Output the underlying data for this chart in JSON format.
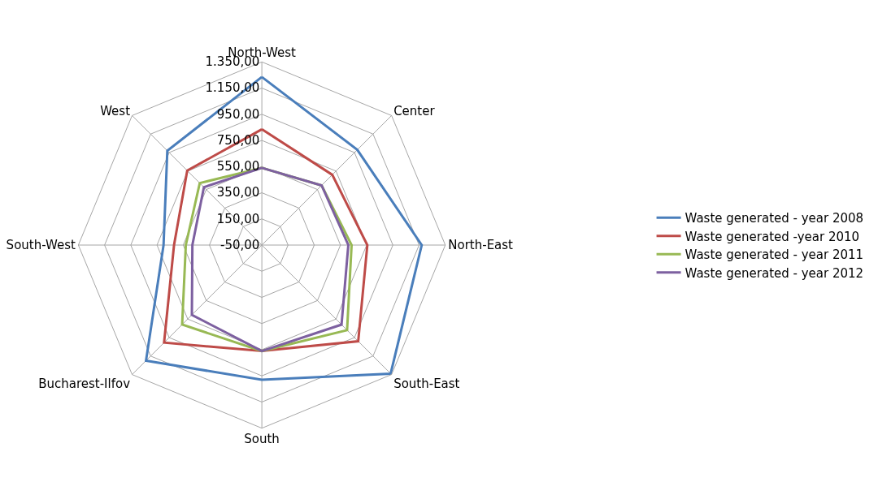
{
  "chart_data": {
    "type": "radar",
    "categories": [
      "North-West",
      "Center",
      "North-East",
      "South-East",
      "South",
      "Bucharest-Ilfov",
      "South-West",
      "West"
    ],
    "series": [
      {
        "name": "Waste generated - year 2008",
        "color": "#4a7ebb",
        "values": [
          1235,
          980,
          1170,
          1340,
          980,
          1200,
          700,
          970
        ]
      },
      {
        "name": "Waste generated -year 2010",
        "color": "#be4b48",
        "values": [
          835,
          710,
          755,
          990,
          760,
          1005,
          620,
          755
        ]
      },
      {
        "name": "Waste generated - year 2011",
        "color": "#98b954",
        "values": [
          540,
          595,
          635,
          870,
          760,
          810,
          530,
          620
        ]
      },
      {
        "name": "Waste generated - year 2012",
        "color": "#7d60a0",
        "values": [
          540,
          595,
          610,
          810,
          760,
          705,
          480,
          575
        ]
      }
    ],
    "ylim": [
      -50,
      1350
    ],
    "yticks": [
      {
        "value": -50,
        "label": "-50,00"
      },
      {
        "value": 150,
        "label": "150,00"
      },
      {
        "value": 350,
        "label": "350,00"
      },
      {
        "value": 550,
        "label": "550,00"
      },
      {
        "value": 750,
        "label": "750,00"
      },
      {
        "value": 950,
        "label": "950,00"
      },
      {
        "value": 1150,
        "label": "1.150,00"
      },
      {
        "value": 1350,
        "label": "1.350,00"
      }
    ],
    "grid": true,
    "legend": "right",
    "marker": "none",
    "line_style": "solid"
  }
}
